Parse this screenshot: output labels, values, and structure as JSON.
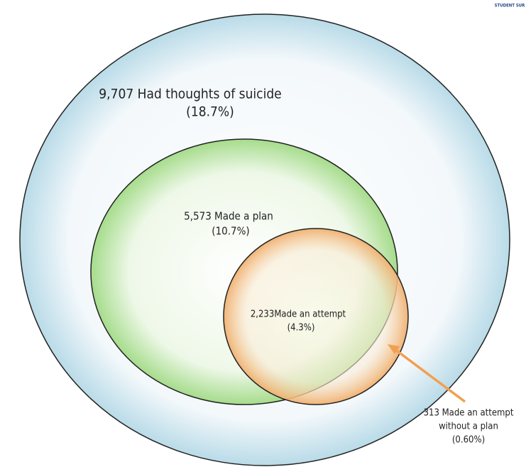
{
  "header": {
    "tag": "STUDENT SUR"
  },
  "nodes": [
    {
      "label": "9,707 Had thoughts of suicide",
      "sublabel": "(18.7%)"
    },
    {
      "label": "5,573 Made a plan",
      "sublabel": "(10.7%)"
    },
    {
      "label": "2,233Made an attempt",
      "sublabel": "(4.3%)"
    }
  ],
  "callout": {
    "lines": [
      "313 Made an attempt",
      "without a plan",
      "(0.60%)"
    ]
  }
}
